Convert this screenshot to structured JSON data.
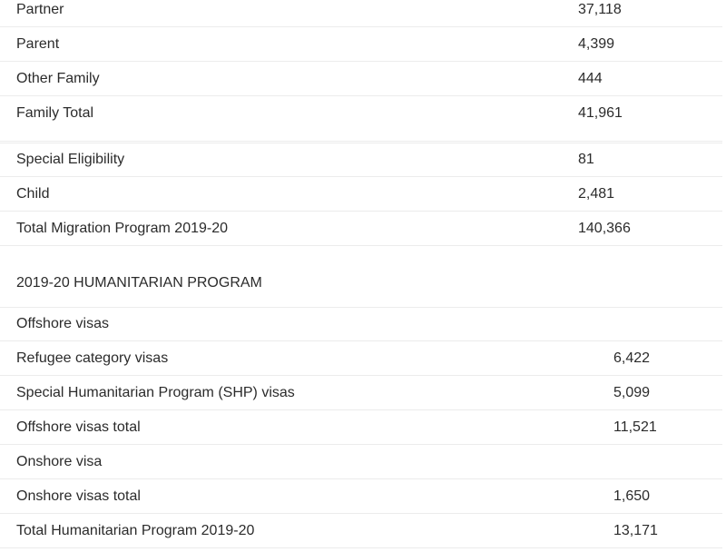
{
  "migration_table": {
    "rows": [
      {
        "label": "Partner",
        "value": "37,118"
      },
      {
        "label": "Parent",
        "value": "4,399"
      },
      {
        "label": "Other Family",
        "value": "444"
      },
      {
        "label": "Family Total",
        "value": "41,961"
      },
      {
        "label": "Special Eligibility",
        "value": "81"
      },
      {
        "label": "Child",
        "value": "2,481"
      },
      {
        "label": "Total Migration Program 2019-20",
        "value": "140,366"
      }
    ]
  },
  "humanitarian": {
    "heading": "2019-20 HUMANITARIAN PROGRAM",
    "rows": [
      {
        "label": "Offshore visas",
        "value": ""
      },
      {
        "label": "Refugee category visas",
        "value": "6,422"
      },
      {
        "label": "Special Humanitarian Program (SHP) visas",
        "value": "5,099"
      },
      {
        "label": "Offshore visas total",
        "value": "11,521"
      },
      {
        "label": "Onshore visa",
        "value": ""
      },
      {
        "label": "Onshore visas total",
        "value": "1,650"
      },
      {
        "label": "Total Humanitarian Program 2019-20",
        "value": "13,171"
      }
    ]
  }
}
